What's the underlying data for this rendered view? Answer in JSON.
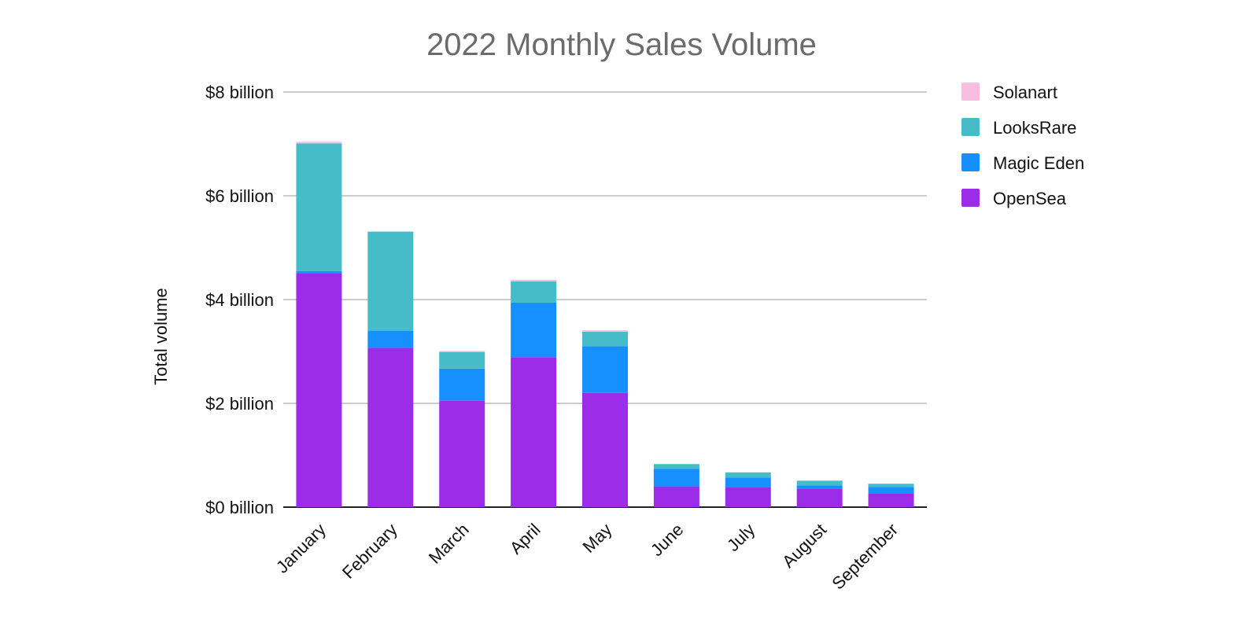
{
  "chart_data": {
    "type": "bar",
    "stacked": true,
    "title": "2022 Monthly Sales Volume",
    "xlabel": "",
    "ylabel": "Total volume",
    "unit": "billion USD",
    "ylim": [
      0,
      8
    ],
    "yticks": [
      0,
      2,
      4,
      6,
      8
    ],
    "ytick_labels": [
      "$0 billion",
      "$2 billion",
      "$4 billion",
      "$6 billion",
      "$8 billion"
    ],
    "grid": true,
    "legend_position": "top-right",
    "categories": [
      "January",
      "February",
      "March",
      "April",
      "May",
      "June",
      "July",
      "August",
      "September"
    ],
    "series": [
      {
        "name": "OpenSea",
        "color": "#9b2de8",
        "values": [
          4.5,
          3.07,
          2.05,
          2.89,
          2.2,
          0.4,
          0.39,
          0.36,
          0.27
        ]
      },
      {
        "name": "Magic Eden",
        "color": "#1690ff",
        "values": [
          0.05,
          0.33,
          0.62,
          1.05,
          0.9,
          0.34,
          0.18,
          0.06,
          0.12
        ]
      },
      {
        "name": "LooksRare",
        "color": "#46bcc8",
        "values": [
          2.46,
          1.91,
          0.32,
          0.41,
          0.28,
          0.09,
          0.1,
          0.09,
          0.06
        ]
      },
      {
        "name": "Solanart",
        "color": "#f9bde0",
        "values": [
          0.03,
          0.0,
          0.02,
          0.03,
          0.03,
          0.0,
          0.0,
          0.0,
          0.0
        ]
      }
    ],
    "legend_order": [
      "Solanart",
      "LooksRare",
      "Magic Eden",
      "OpenSea"
    ]
  }
}
